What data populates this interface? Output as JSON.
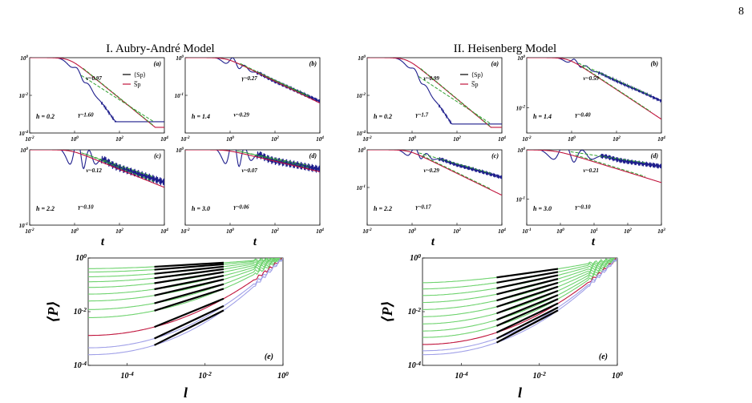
{
  "page_number": "8",
  "sections": [
    "I. Aubry-André Model",
    "II. Heisenberg Model"
  ],
  "colors": {
    "blue": "#1e1e8c",
    "red": "#c0143c",
    "green": "#2fa02f",
    "lightgreen": "#6fd36f",
    "lightblue": "#a0a0e8",
    "black": "#000000"
  },
  "chart_data": [
    {
      "id": "I-a",
      "type": "line",
      "panel": "(a)",
      "h_label": "h = 0.2",
      "x_scale": "log",
      "y_scale": "log",
      "xlim": [
        0.01,
        10000
      ],
      "ylim": [
        0.0001,
        1
      ],
      "xticks": [
        "10-2",
        "100",
        "102",
        "104"
      ],
      "yticks": [
        "10-4",
        "10-2",
        "100"
      ],
      "legend": [
        "⟨Sp⟩",
        "S̅p"
      ],
      "annotations": [
        "ν~0.97",
        "γ~1.60"
      ],
      "series": [
        {
          "name": "⟨Sp⟩",
          "color": "blue",
          "t0": 0.5,
          "slope": 1.6,
          "floor": 0.0004,
          "osc": 0.8
        },
        {
          "name": "S̅p",
          "color": "red",
          "t0": 0.6,
          "slope": 0.97,
          "floor": 0.0002,
          "osc": 0
        }
      ]
    },
    {
      "id": "I-b",
      "type": "line",
      "panel": "(b)",
      "h_label": "h = 1.4",
      "x_scale": "log",
      "y_scale": "log",
      "xlim": [
        0.01,
        10000
      ],
      "ylim": [
        0.01,
        1
      ],
      "xticks": [
        "10-2",
        "100",
        "102",
        "104"
      ],
      "yticks": [
        "10-1",
        "100"
      ],
      "annotations": [
        "γ~0.27",
        "ν~0.29"
      ],
      "series": [
        {
          "name": "⟨Sp⟩",
          "color": "blue",
          "t0": 0.5,
          "slope": 0.27,
          "floor": 0.05,
          "osc": 0.6
        },
        {
          "name": "S̅p",
          "color": "red",
          "t0": 0.7,
          "slope": 0.29,
          "floor": 0.05,
          "osc": 0
        }
      ]
    },
    {
      "id": "I-c",
      "type": "line",
      "panel": "(c)",
      "h_label": "h = 2.2",
      "x_scale": "log",
      "y_scale": "log",
      "xlim": [
        0.01,
        10000
      ],
      "ylim": [
        0.1,
        1
      ],
      "xticks": [
        "10-2",
        "100",
        "102",
        "104"
      ],
      "yticks": [
        "10-1",
        "100"
      ],
      "annotations": [
        "ν~0.12",
        "γ~0.10"
      ],
      "series": [
        {
          "name": "⟨Sp⟩",
          "color": "blue",
          "t0": 0.5,
          "slope": 0.1,
          "floor": 0.25,
          "osc": 1.0
        },
        {
          "name": "S̅p",
          "color": "red",
          "t0": 0.7,
          "slope": 0.12,
          "floor": 0.25,
          "osc": 0
        }
      ]
    },
    {
      "id": "I-d",
      "type": "line",
      "panel": "(d)",
      "h_label": "h = 3.0",
      "x_scale": "log",
      "y_scale": "log",
      "xlim": [
        0.01,
        10000
      ],
      "ylim": [
        0.1,
        1
      ],
      "xticks": [
        "10-2",
        "100",
        "102",
        "104"
      ],
      "yticks": [
        "100"
      ],
      "annotations": [
        "ν~0.07",
        "γ~0.06"
      ],
      "series": [
        {
          "name": "⟨Sp⟩",
          "color": "blue",
          "t0": 0.5,
          "slope": 0.06,
          "floor": 0.3,
          "osc": 1.0
        },
        {
          "name": "S̅p",
          "color": "red",
          "t0": 0.7,
          "slope": 0.07,
          "floor": 0.3,
          "osc": 0
        }
      ]
    },
    {
      "id": "II-a",
      "type": "line",
      "panel": "(a)",
      "h_label": "h = 0.2",
      "x_scale": "log",
      "y_scale": "log",
      "xlim": [
        0.01,
        10000
      ],
      "ylim": [
        0.0001,
        1
      ],
      "xticks": [
        "10-2",
        "100",
        "102",
        "104"
      ],
      "yticks": [
        "10-4",
        "10-2",
        "100"
      ],
      "legend": [
        "⟨Sp⟩",
        "S̅p"
      ],
      "annotations": [
        "ν~0.99",
        "γ~1.7"
      ],
      "series": [
        {
          "name": "⟨Sp⟩",
          "color": "blue",
          "t0": 0.5,
          "slope": 1.7,
          "floor": 0.0003,
          "osc": 0.8
        },
        {
          "name": "S̅p",
          "color": "red",
          "t0": 0.6,
          "slope": 0.99,
          "floor": 0.0002,
          "osc": 0
        }
      ]
    },
    {
      "id": "II-b",
      "type": "line",
      "panel": "(b)",
      "h_label": "h = 1.4",
      "x_scale": "log",
      "y_scale": "log",
      "xlim": [
        0.01,
        10000
      ],
      "ylim": [
        0.001,
        1
      ],
      "xticks": [
        "10-2",
        "100",
        "102",
        "104"
      ],
      "yticks": [
        "10-2",
        "100"
      ],
      "annotations": [
        "ν~0.59",
        "γ~0.40"
      ],
      "series": [
        {
          "name": "⟨Sp⟩",
          "color": "blue",
          "t0": 0.5,
          "slope": 0.4,
          "floor": 0.003,
          "osc": 0.6
        },
        {
          "name": "S̅p",
          "color": "red",
          "t0": 0.7,
          "slope": 0.59,
          "floor": 0.003,
          "osc": 0
        }
      ]
    },
    {
      "id": "II-c",
      "type": "line",
      "panel": "(c)",
      "h_label": "h = 2.2",
      "x_scale": "log",
      "y_scale": "log",
      "xlim": [
        0.01,
        10000
      ],
      "ylim": [
        0.01,
        1
      ],
      "xticks": [
        "10-2",
        "100",
        "102",
        "104"
      ],
      "yticks": [
        "10-1",
        "100"
      ],
      "annotations": [
        "ν~0.29",
        "γ~0.17"
      ],
      "series": [
        {
          "name": "⟨Sp⟩",
          "color": "blue",
          "t0": 0.5,
          "slope": 0.17,
          "floor": 0.05,
          "osc": 0.7
        },
        {
          "name": "S̅p",
          "color": "red",
          "t0": 0.7,
          "slope": 0.29,
          "floor": 0.05,
          "osc": 0
        }
      ]
    },
    {
      "id": "II-d",
      "type": "line",
      "panel": "(d)",
      "h_label": "h = 3.0",
      "x_scale": "log",
      "y_scale": "log",
      "xlim": [
        0.1,
        1000
      ],
      "ylim": [
        0.03,
        1
      ],
      "xticks": [
        "10-1",
        "100",
        "101",
        "102",
        "103"
      ],
      "yticks": [
        "10-1",
        "100"
      ],
      "annotations": [
        "ν~0.21",
        "γ~0.10"
      ],
      "series": [
        {
          "name": "⟨Sp⟩",
          "color": "blue",
          "t0": 0.5,
          "slope": 0.1,
          "floor": 0.08,
          "osc": 1.0
        },
        {
          "name": "S̅p",
          "color": "red",
          "t0": 0.7,
          "slope": 0.21,
          "floor": 0.08,
          "osc": 0
        }
      ]
    },
    {
      "id": "I-e",
      "type": "line",
      "panel": "(e)",
      "x_scale": "log",
      "y_scale": "log",
      "xlim": [
        1e-05,
        1
      ],
      "ylim": [
        0.0001,
        1
      ],
      "xticks": [
        "10-4",
        "10-2",
        "100"
      ],
      "yticks": [
        "10-4",
        "10-2",
        "100"
      ],
      "y_start": [
        0.4,
        0.3,
        0.2,
        0.13,
        0.08,
        0.045,
        0.025,
        0.012,
        0.006,
        0.0013,
        0.00045,
        0.00025
      ],
      "fit_range": [
        0.0005,
        0.03
      ]
    },
    {
      "id": "II-e",
      "type": "line",
      "panel": "(e)",
      "x_scale": "log",
      "y_scale": "log",
      "xlim": [
        1e-05,
        1
      ],
      "ylim": [
        0.0001,
        1
      ],
      "xticks": [
        "10-4",
        "10-2",
        "100"
      ],
      "yticks": [
        "10-4",
        "10-2",
        "100"
      ],
      "y_start": [
        0.12,
        0.07,
        0.04,
        0.022,
        0.012,
        0.0065,
        0.0035,
        0.0019,
        0.0011,
        0.0006,
        0.00035,
        0.00025
      ],
      "fit_range": [
        0.0008,
        0.03
      ]
    }
  ]
}
